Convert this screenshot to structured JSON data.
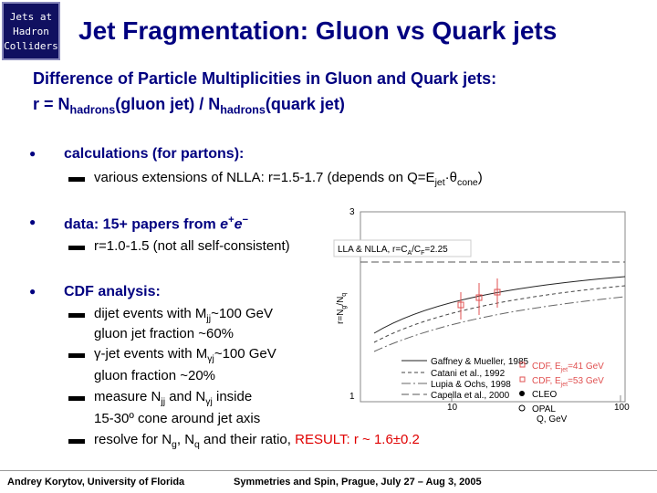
{
  "logo": {
    "lines": [
      "Jets at",
      "Hadron",
      "Colliders"
    ]
  },
  "header": {
    "title": "Jet Fragmentation: Gluon vs Quark jets"
  },
  "intro": {
    "line1": "Difference of Particle Multiplicities in Gluon and Quark jets:",
    "line2": [
      "r = N",
      "hadrons",
      "(gluon jet) / N",
      "hadrons",
      "(quark jet)"
    ]
  },
  "bullets": [
    {
      "heading": [
        "calculations (for partons):"
      ],
      "items": [
        [
          "various extensions of NLLA: r=1.5-1.7 (depends on Q=E",
          "jet",
          "·θ",
          "cone",
          ")"
        ]
      ]
    },
    {
      "heading": [
        "data: 15+ papers from ",
        "e",
        "+",
        "e",
        "−"
      ],
      "items": [
        [
          "r=1.0-1.5 (not all self-consistent)"
        ]
      ]
    },
    {
      "heading": [
        "CDF analysis:"
      ],
      "items": [
        [
          "dijet events with M",
          "jj",
          "~100 GeV"
        ],
        [
          "gluon jet fraction ~60%"
        ],
        [
          "γ-jet events with M",
          "γj",
          "~100 GeV"
        ],
        [
          "gluon fraction ~20%"
        ],
        [
          "measure N",
          "jj",
          " and N",
          "γj",
          " inside"
        ],
        [
          "15-30º cone around jet axis"
        ],
        [
          "resolve for N",
          "g",
          ", N",
          "q",
          " and their ratio, ",
          "RESULT: r ~ 1.6±0.2"
        ]
      ]
    }
  ],
  "plot": {
    "band_label": [
      "LLA & NLLA, r=C",
      "A",
      "/C",
      "F",
      "=2.25"
    ],
    "y_label": [
      "r=N",
      "g",
      "/N",
      "q"
    ],
    "x_label": "Q, GeV",
    "x_ticks": [
      "10",
      "100"
    ],
    "y_ticks": [
      "3",
      "1"
    ],
    "legend": [
      "Gaffney & Mueller, 1985",
      "Catani et al., 1992",
      "Lupia & Ochs, 1998",
      "Capella et al., 2000"
    ],
    "cdf_legend": [
      [
        "CDF, E",
        "jet",
        "=41 GeV"
      ],
      [
        "CDF, E",
        "jet",
        "=53 GeV"
      ],
      [
        "CLEO"
      ],
      [
        "OPAL"
      ]
    ]
  },
  "footer": {
    "left": "Andrey Korytov, University of Florida",
    "right": "Symmetries and Spin, Prague, July 27 – Aug 3, 2005"
  }
}
